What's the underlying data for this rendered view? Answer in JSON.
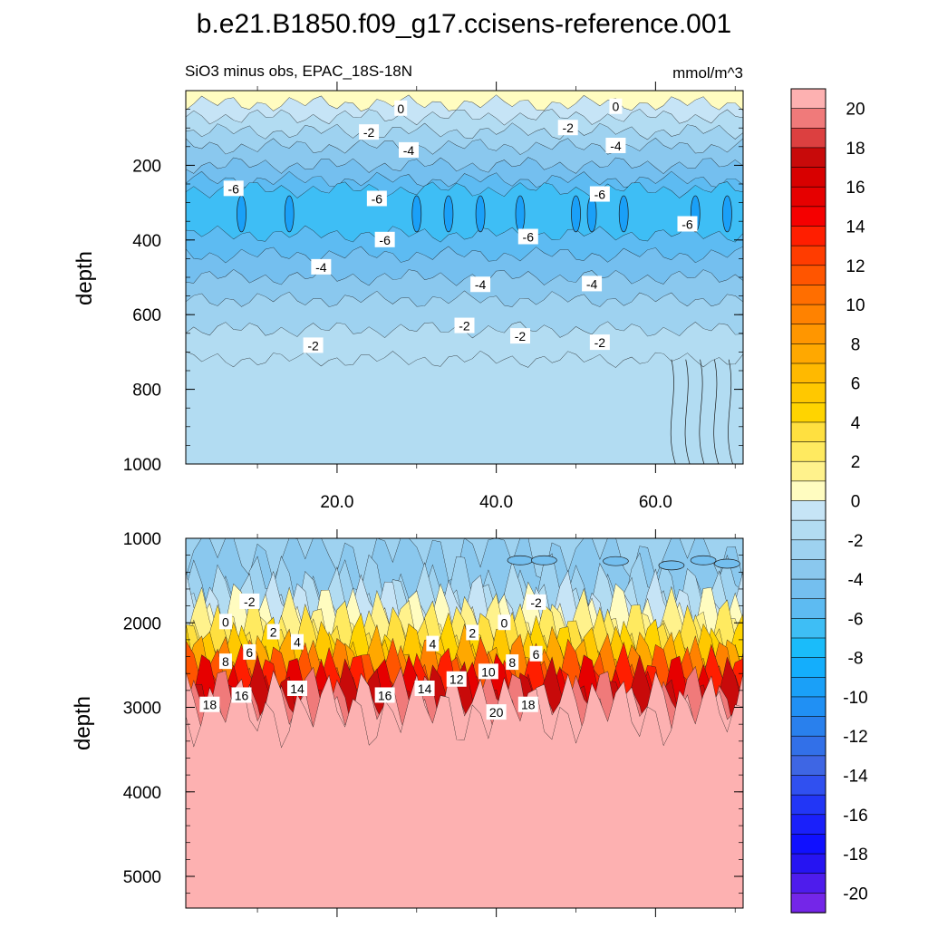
{
  "chart_data": {
    "type": "contour",
    "title": "b.e21.B1850.f09_g17.ccisens-reference.001",
    "subtitle_left": "SiO3 minus obs, EPAC_18S-18N",
    "units": "mmol/m^3",
    "x_ticks": [
      "20.0",
      "40.0",
      "60.0"
    ],
    "x_tick_values": [
      20,
      40,
      60
    ],
    "xlim": [
      1,
      71
    ],
    "panels": [
      {
        "name": "upper",
        "ylabel": "depth",
        "ylim": [
          0,
          1000
        ],
        "y_ticks": [
          "200",
          "400",
          "600",
          "800",
          "1000"
        ],
        "y_tick_values": [
          200,
          400,
          600,
          800,
          1000
        ],
        "layers": [
          {
            "depth_top": 0,
            "depth_bottom": 35,
            "value": 0.5
          },
          {
            "depth_top": 35,
            "depth_bottom": 70,
            "value": -0.5
          },
          {
            "depth_top": 70,
            "depth_bottom": 110,
            "value": -1.5
          },
          {
            "depth_top": 110,
            "depth_bottom": 150,
            "value": -2.5
          },
          {
            "depth_top": 150,
            "depth_bottom": 200,
            "value": -3.5
          },
          {
            "depth_top": 200,
            "depth_bottom": 240,
            "value": -4.5
          },
          {
            "depth_top": 240,
            "depth_bottom": 265,
            "value": -5.5
          },
          {
            "depth_top": 265,
            "depth_bottom": 385,
            "value": -6.5
          },
          {
            "depth_top": 385,
            "depth_bottom": 440,
            "value": -5.5
          },
          {
            "depth_top": 440,
            "depth_bottom": 500,
            "value": -4.5
          },
          {
            "depth_top": 500,
            "depth_bottom": 560,
            "value": -3.5
          },
          {
            "depth_top": 560,
            "depth_bottom": 640,
            "value": -2.5
          },
          {
            "depth_top": 640,
            "depth_bottom": 720,
            "value": -1.5
          },
          {
            "depth_top": 720,
            "depth_bottom": 1000,
            "value": -1.0
          }
        ],
        "contour_labels": [
          {
            "text": "0",
            "x": 28,
            "depth": 48
          },
          {
            "text": "0",
            "x": 55,
            "depth": 43
          },
          {
            "text": "-2",
            "x": 24,
            "depth": 112
          },
          {
            "text": "-2",
            "x": 49,
            "depth": 100
          },
          {
            "text": "-4",
            "x": 29,
            "depth": 160
          },
          {
            "text": "-4",
            "x": 55,
            "depth": 148
          },
          {
            "text": "-6",
            "x": 7,
            "depth": 263
          },
          {
            "text": "-6",
            "x": 25,
            "depth": 290
          },
          {
            "text": "-6",
            "x": 53,
            "depth": 278
          },
          {
            "text": "-6",
            "x": 26,
            "depth": 400
          },
          {
            "text": "-6",
            "x": 44,
            "depth": 392
          },
          {
            "text": "-6",
            "x": 64,
            "depth": 358
          },
          {
            "text": "-4",
            "x": 18,
            "depth": 473
          },
          {
            "text": "-4",
            "x": 38,
            "depth": 520
          },
          {
            "text": "-4",
            "x": 52,
            "depth": 518
          },
          {
            "text": "-2",
            "x": 36,
            "depth": 630
          },
          {
            "text": "-2",
            "x": 43,
            "depth": 658
          },
          {
            "text": "-2",
            "x": 17,
            "depth": 683
          },
          {
            "text": "-2",
            "x": 53,
            "depth": 675
          }
        ]
      },
      {
        "name": "lower",
        "ylabel": "depth",
        "ylim": [
          1000,
          5375
        ],
        "y_ticks": [
          "1000",
          "2000",
          "3000",
          "4000",
          "5000"
        ],
        "y_tick_values": [
          1000,
          2000,
          3000,
          4000,
          5000
        ],
        "layers": [
          {
            "depth_top": 1000,
            "depth_bottom": 1130,
            "value": -2.5
          },
          {
            "depth_top": 1130,
            "depth_bottom": 1570,
            "value": -3.5
          },
          {
            "depth_top": 1570,
            "depth_bottom": 1720,
            "value": -2.5
          },
          {
            "depth_top": 1720,
            "depth_bottom": 1810,
            "value": -1.5
          },
          {
            "depth_top": 1810,
            "depth_bottom": 1930,
            "value": -0.5
          },
          {
            "depth_top": 1930,
            "depth_bottom": 2030,
            "value": 0.5
          },
          {
            "depth_top": 2030,
            "depth_bottom": 2130,
            "value": 1.5
          },
          {
            "depth_top": 2130,
            "depth_bottom": 2230,
            "value": 2.5
          },
          {
            "depth_top": 2230,
            "depth_bottom": 2320,
            "value": 3.5
          },
          {
            "depth_top": 2320,
            "depth_bottom": 2400,
            "value": 4.5
          },
          {
            "depth_top": 2400,
            "depth_bottom": 2470,
            "value": 5.5
          },
          {
            "depth_top": 2470,
            "depth_bottom": 2540,
            "value": 7
          },
          {
            "depth_top": 2540,
            "depth_bottom": 2610,
            "value": 9
          },
          {
            "depth_top": 2610,
            "depth_bottom": 2680,
            "value": 11
          },
          {
            "depth_top": 2680,
            "depth_bottom": 2760,
            "value": 13
          },
          {
            "depth_top": 2760,
            "depth_bottom": 2840,
            "value": 15
          },
          {
            "depth_top": 2840,
            "depth_bottom": 2930,
            "value": 17
          },
          {
            "depth_top": 2930,
            "depth_bottom": 3010,
            "value": 19
          },
          {
            "depth_top": 3010,
            "depth_bottom": 3060,
            "value": 20.5
          },
          {
            "depth_top": 3060,
            "depth_bottom": 5375,
            "value": 22
          }
        ],
        "contour_labels": [
          {
            "text": "-2",
            "x": 9,
            "depth": 1750
          },
          {
            "text": "-2",
            "x": 45,
            "depth": 1760
          },
          {
            "text": "0",
            "x": 6,
            "depth": 1990
          },
          {
            "text": "0",
            "x": 41,
            "depth": 2000
          },
          {
            "text": "2",
            "x": 12,
            "depth": 2110
          },
          {
            "text": "2",
            "x": 37,
            "depth": 2120
          },
          {
            "text": "4",
            "x": 15,
            "depth": 2230
          },
          {
            "text": "4",
            "x": 32,
            "depth": 2250
          },
          {
            "text": "6",
            "x": 9,
            "depth": 2350
          },
          {
            "text": "6",
            "x": 45,
            "depth": 2370
          },
          {
            "text": "8",
            "x": 6,
            "depth": 2460
          },
          {
            "text": "8",
            "x": 42,
            "depth": 2470
          },
          {
            "text": "10",
            "x": 39,
            "depth": 2580
          },
          {
            "text": "12",
            "x": 35,
            "depth": 2670
          },
          {
            "text": "14",
            "x": 15,
            "depth": 2780
          },
          {
            "text": "14",
            "x": 31,
            "depth": 2780
          },
          {
            "text": "16",
            "x": 8,
            "depth": 2860
          },
          {
            "text": "16",
            "x": 26,
            "depth": 2860
          },
          {
            "text": "18",
            "x": 4,
            "depth": 2970
          },
          {
            "text": "18",
            "x": 44,
            "depth": 2970
          },
          {
            "text": "20",
            "x": 40,
            "depth": 3060
          }
        ]
      }
    ],
    "colorbar": {
      "labels": [
        "20",
        "18",
        "16",
        "14",
        "12",
        "10",
        "8",
        "6",
        "4",
        "2",
        "0",
        "-2",
        "-4",
        "-6",
        "-8",
        "-10",
        "-12",
        "-14",
        "-16",
        "-18",
        "-20"
      ],
      "colors_top_to_bottom": [
        "#fdb1b1",
        "#f07a7a",
        "#dc4040",
        "#c80a0a",
        "#d80000",
        "#e60000",
        "#f50000",
        "#ff1e00",
        "#ff3c00",
        "#ff5500",
        "#ff6e00",
        "#ff8200",
        "#ff9600",
        "#ffa800",
        "#ffb900",
        "#ffc800",
        "#ffd400",
        "#ffe040",
        "#ffea60",
        "#fff28c",
        "#fffcc0",
        "#c6e4f6",
        "#b2dcf2",
        "#9ed2f0",
        "#8ac8ee",
        "#74bfef",
        "#5dbbf2",
        "#3ebef5",
        "#1abcfa",
        "#14aefc",
        "#1aa0f8",
        "#2090f4",
        "#2980ed",
        "#3270e8",
        "#3e66e4",
        "#3050f0",
        "#2236f6",
        "#1a20fa",
        "#1010ff",
        "#2614f2",
        "#4e1cec",
        "#7426e8"
      ]
    }
  }
}
